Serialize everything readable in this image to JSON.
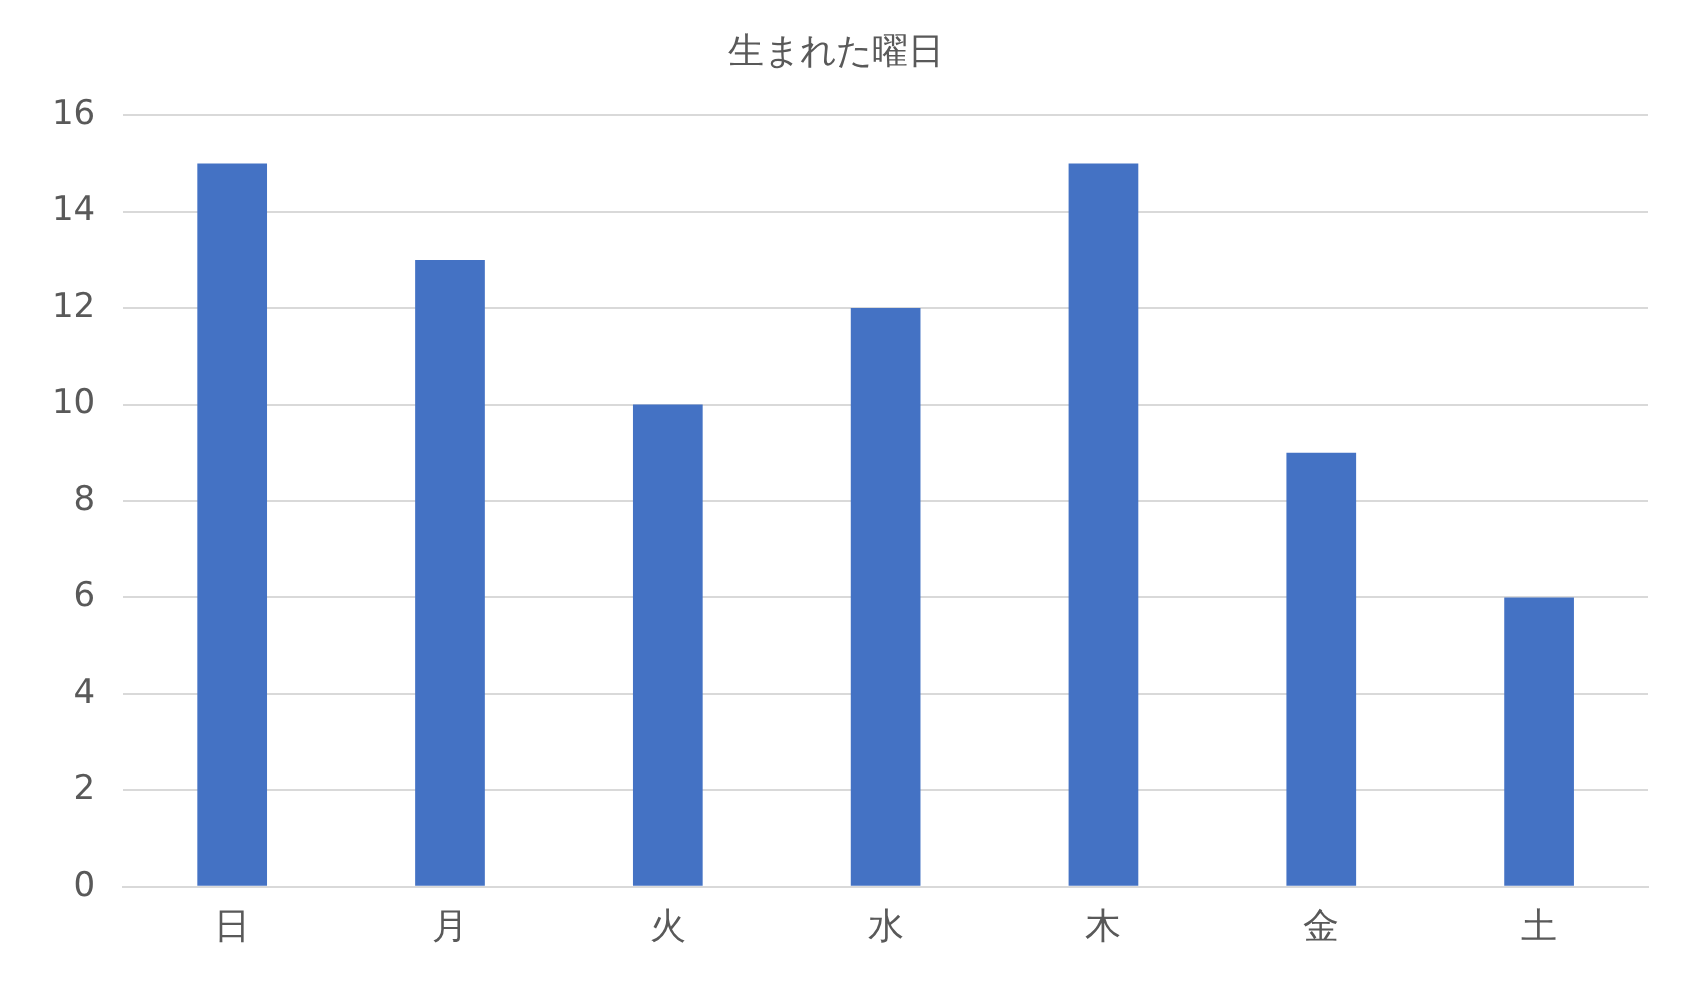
{
  "chart_data": {
    "type": "bar",
    "title": "生まれた曜日",
    "categories": [
      "日",
      "月",
      "火",
      "水",
      "木",
      "金",
      "土"
    ],
    "values": [
      15,
      13,
      10,
      12,
      15,
      9,
      6
    ],
    "color": "#4472c4",
    "ylim": [
      0,
      16
    ],
    "yticks": [
      0,
      2,
      4,
      6,
      8,
      10,
      12,
      14,
      16
    ],
    "grid": "y",
    "legend": false
  }
}
